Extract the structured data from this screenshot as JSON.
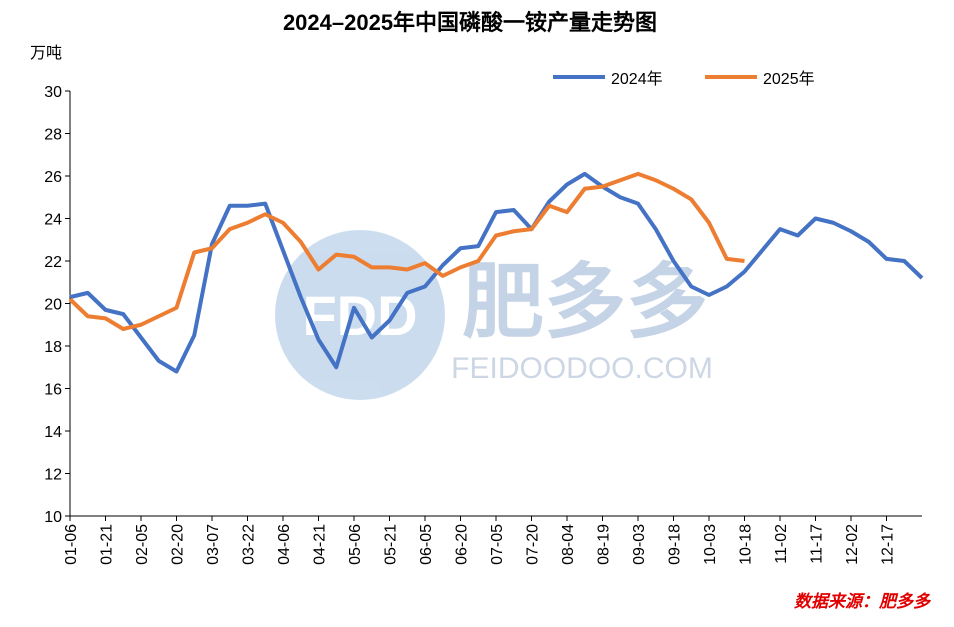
{
  "chart_data": {
    "type": "line",
    "title": "2024–2025年中国磷酸一铵产量走势图",
    "y_unit": "万吨",
    "source": "数据来源：肥多多",
    "watermark": {
      "logo": "FDD",
      "name": "肥多多",
      "site": "FEIDOODOO.COM"
    },
    "categories": [
      "01-06",
      null,
      "01-21",
      null,
      "02-05",
      null,
      "02-20",
      null,
      "03-07",
      null,
      "03-22",
      null,
      "04-06",
      null,
      "04-21",
      null,
      "05-06",
      null,
      "05-21",
      null,
      "06-05",
      null,
      "06-20",
      null,
      "07-05",
      null,
      "07-20",
      null,
      "08-04",
      null,
      "08-19",
      null,
      "09-03",
      null,
      "09-18",
      null,
      "10-03",
      null,
      "10-18",
      null,
      "11-02",
      null,
      "11-17",
      null,
      "12-02",
      null,
      "12-17",
      null,
      null
    ],
    "series": [
      {
        "name": "2024年",
        "color": "#4472c4",
        "values": [
          20.3,
          20.5,
          19.7,
          19.5,
          18.4,
          17.3,
          16.8,
          18.5,
          22.8,
          24.6,
          24.6,
          24.7,
          22.5,
          20.3,
          18.3,
          17.0,
          19.8,
          18.4,
          19.2,
          20.5,
          20.8,
          21.8,
          22.6,
          22.7,
          24.3,
          24.4,
          23.5,
          24.8,
          25.6,
          26.1,
          25.5,
          25.0,
          24.7,
          23.5,
          22.0,
          20.8,
          20.4,
          20.8,
          21.5,
          22.5,
          23.5,
          23.2,
          24.0,
          23.8,
          23.4,
          22.9,
          22.1,
          22.0,
          21.2
        ]
      },
      {
        "name": "2025年",
        "color": "#ed7d31",
        "values": [
          20.2,
          19.4,
          19.3,
          18.8,
          19.0,
          19.4,
          19.8,
          22.4,
          22.6,
          23.5,
          23.8,
          24.2,
          23.8,
          22.9,
          21.6,
          22.3,
          22.2,
          21.7,
          21.7,
          21.6,
          21.9,
          21.3,
          21.7,
          22.0,
          23.2,
          23.4,
          23.5,
          24.6,
          24.3,
          25.4,
          25.5,
          25.8,
          26.1,
          25.8,
          25.4,
          24.9,
          23.8,
          22.1,
          22.0,
          null,
          null,
          null,
          null,
          null,
          null,
          null,
          null,
          null,
          null
        ]
      }
    ],
    "ylim": [
      10,
      30
    ],
    "yticks": [
      10,
      12,
      14,
      16,
      18,
      20,
      22,
      24,
      26,
      28,
      30
    ]
  }
}
